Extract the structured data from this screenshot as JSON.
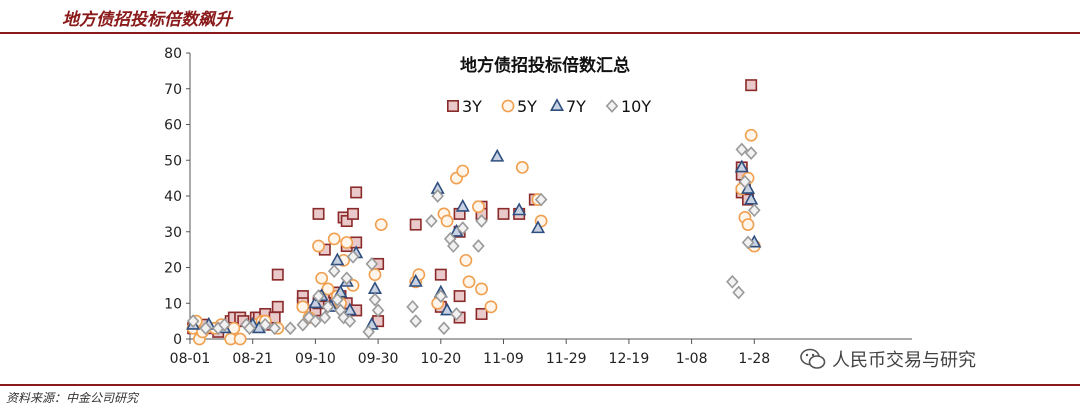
{
  "header": {
    "title": "地方债招投标倍数飙升"
  },
  "footer": {
    "source": "资料来源：中金公司研究"
  },
  "watermark": {
    "text": "人民币交易与研究",
    "icon": "wechat-icon"
  },
  "colors": {
    "brand": "#8b1a1a",
    "s3y": "#8b2a2a",
    "s5y": "#f0a050",
    "s7y": "#2f4f7f",
    "s10y": "#9a9a9a"
  },
  "chart_data": {
    "type": "scatter",
    "title": "地方债招投标倍数汇总",
    "xlabel": "",
    "ylabel": "",
    "ylim": [
      0,
      80
    ],
    "yticks": [
      0,
      10,
      20,
      30,
      40,
      50,
      60,
      70,
      80
    ],
    "xlim": [
      "08-01",
      "11-04"
    ],
    "xticks": [
      "08-01",
      "08-21",
      "09-10",
      "09-30",
      "10-20",
      "11-09",
      "11-29",
      "12-19",
      "1-08",
      "1-28"
    ],
    "grid": false,
    "legend_position": "top-center",
    "series": [
      {
        "name": "3Y",
        "marker": "square",
        "color": "#8b2a2a",
        "points": [
          [
            "08-02",
            3
          ],
          [
            "08-05",
            4
          ],
          [
            "08-08",
            3
          ],
          [
            "08-10",
            2
          ],
          [
            "08-14",
            5
          ],
          [
            "08-15",
            6
          ],
          [
            "08-17",
            6
          ],
          [
            "08-18",
            5
          ],
          [
            "08-22",
            6
          ],
          [
            "08-23",
            6
          ],
          [
            "08-25",
            7
          ],
          [
            "08-27",
            4
          ],
          [
            "08-28",
            6
          ],
          [
            "08-29",
            18
          ],
          [
            "08-29",
            9
          ],
          [
            "09-06",
            12
          ],
          [
            "09-06",
            10
          ],
          [
            "09-10",
            8
          ],
          [
            "09-11",
            35
          ],
          [
            "09-11",
            10
          ],
          [
            "09-13",
            25
          ],
          [
            "09-13",
            12
          ],
          [
            "09-16",
            13
          ],
          [
            "09-17",
            10
          ],
          [
            "09-18",
            12
          ],
          [
            "09-19",
            34
          ],
          [
            "09-20",
            33
          ],
          [
            "09-20",
            26
          ],
          [
            "09-20",
            10
          ],
          [
            "09-22",
            35
          ],
          [
            "09-23",
            41
          ],
          [
            "09-23",
            27
          ],
          [
            "09-23",
            8
          ],
          [
            "09-30",
            21
          ],
          [
            "09-30",
            5
          ],
          [
            "10-12",
            32
          ],
          [
            "10-20",
            18
          ],
          [
            "10-20",
            9
          ],
          [
            "10-26",
            35
          ],
          [
            "10-26",
            30
          ],
          [
            "10-26",
            12
          ],
          [
            "10-26",
            6
          ],
          [
            "11-02",
            37
          ],
          [
            "11-02",
            35
          ],
          [
            "11-02",
            7
          ],
          [
            "11-09",
            35
          ],
          [
            "11-14",
            35
          ],
          [
            "11-19",
            39
          ],
          [
            "01-24",
            48
          ],
          [
            "01-24",
            41
          ],
          [
            "01-24",
            46
          ],
          [
            "01-25",
            43
          ],
          [
            "01-26",
            39
          ],
          [
            "01-27",
            71
          ]
        ]
      },
      {
        "name": "5Y",
        "marker": "circle",
        "color": "#f0a050",
        "points": [
          [
            "08-02",
            3
          ],
          [
            "08-03",
            5
          ],
          [
            "08-04",
            0
          ],
          [
            "08-05",
            2
          ],
          [
            "08-09",
            3
          ],
          [
            "08-11",
            4
          ],
          [
            "08-14",
            0
          ],
          [
            "08-15",
            3
          ],
          [
            "08-17",
            0
          ],
          [
            "08-22",
            4
          ],
          [
            "08-24",
            5
          ],
          [
            "08-25",
            5
          ],
          [
            "08-29",
            3
          ],
          [
            "09-06",
            9
          ],
          [
            "09-08",
            6
          ],
          [
            "09-11",
            26
          ],
          [
            "09-12",
            17
          ],
          [
            "09-14",
            14
          ],
          [
            "09-16",
            28
          ],
          [
            "09-17",
            12
          ],
          [
            "09-18",
            10
          ],
          [
            "09-19",
            22
          ],
          [
            "09-20",
            27
          ],
          [
            "09-22",
            15
          ],
          [
            "09-29",
            18
          ],
          [
            "10-01",
            32
          ],
          [
            "10-12",
            16
          ],
          [
            "10-13",
            18
          ],
          [
            "10-19",
            10
          ],
          [
            "10-21",
            35
          ],
          [
            "10-22",
            33
          ],
          [
            "10-25",
            45
          ],
          [
            "10-27",
            47
          ],
          [
            "10-28",
            22
          ],
          [
            "10-29",
            16
          ],
          [
            "11-01",
            37
          ],
          [
            "11-02",
            14
          ],
          [
            "11-05",
            9
          ],
          [
            "11-15",
            48
          ],
          [
            "11-20",
            39
          ],
          [
            "11-21",
            33
          ],
          [
            "01-24",
            42
          ],
          [
            "01-25",
            34
          ],
          [
            "01-26",
            32
          ],
          [
            "01-26",
            45
          ],
          [
            "01-27",
            57
          ],
          [
            "01-28",
            26
          ]
        ]
      },
      {
        "name": "7Y",
        "marker": "triangle",
        "color": "#2f4f7f",
        "points": [
          [
            "08-02",
            4
          ],
          [
            "08-07",
            4
          ],
          [
            "08-12",
            3
          ],
          [
            "08-21",
            4
          ],
          [
            "08-23",
            3
          ],
          [
            "09-10",
            10
          ],
          [
            "09-12",
            12
          ],
          [
            "09-15",
            9
          ],
          [
            "09-17",
            22
          ],
          [
            "09-18",
            13
          ],
          [
            "09-20",
            16
          ],
          [
            "09-21",
            8
          ],
          [
            "09-23",
            24
          ],
          [
            "09-28",
            4
          ],
          [
            "09-29",
            14
          ],
          [
            "10-12",
            16
          ],
          [
            "10-19",
            42
          ],
          [
            "10-20",
            13
          ],
          [
            "10-22",
            8
          ],
          [
            "10-25",
            30
          ],
          [
            "10-27",
            37
          ],
          [
            "11-07",
            51
          ],
          [
            "11-14",
            36
          ],
          [
            "11-20",
            31
          ],
          [
            "01-24",
            48
          ],
          [
            "01-26",
            42
          ],
          [
            "01-27",
            39
          ],
          [
            "01-28",
            27
          ]
        ]
      },
      {
        "name": "10Y",
        "marker": "diamond",
        "color": "#9a9a9a",
        "points": [
          [
            "08-02",
            5
          ],
          [
            "08-06",
            3
          ],
          [
            "08-10",
            3
          ],
          [
            "08-12",
            4
          ],
          [
            "08-19",
            4
          ],
          [
            "08-20",
            3
          ],
          [
            "08-25",
            4
          ],
          [
            "08-28",
            3
          ],
          [
            "09-02",
            3
          ],
          [
            "09-06",
            4
          ],
          [
            "09-08",
            6
          ],
          [
            "09-10",
            5
          ],
          [
            "09-11",
            12
          ],
          [
            "09-13",
            6
          ],
          [
            "09-14",
            9
          ],
          [
            "09-16",
            19
          ],
          [
            "09-17",
            11
          ],
          [
            "09-18",
            8
          ],
          [
            "09-19",
            6
          ],
          [
            "09-20",
            17
          ],
          [
            "09-21",
            5
          ],
          [
            "09-22",
            23
          ],
          [
            "09-27",
            2
          ],
          [
            "09-28",
            21
          ],
          [
            "09-29",
            11
          ],
          [
            "09-30",
            8
          ],
          [
            "10-11",
            9
          ],
          [
            "10-12",
            5
          ],
          [
            "10-17",
            33
          ],
          [
            "10-19",
            40
          ],
          [
            "10-20",
            12
          ],
          [
            "10-21",
            3
          ],
          [
            "10-23",
            28
          ],
          [
            "10-24",
            26
          ],
          [
            "10-25",
            7
          ],
          [
            "10-27",
            31
          ],
          [
            "11-01",
            26
          ],
          [
            "11-02",
            33
          ],
          [
            "11-21",
            39
          ],
          [
            "01-21",
            16
          ],
          [
            "01-23",
            13
          ],
          [
            "01-24",
            53
          ],
          [
            "01-25",
            44
          ],
          [
            "01-26",
            27
          ],
          [
            "01-27",
            52
          ],
          [
            "01-28",
            36
          ]
        ]
      }
    ]
  }
}
